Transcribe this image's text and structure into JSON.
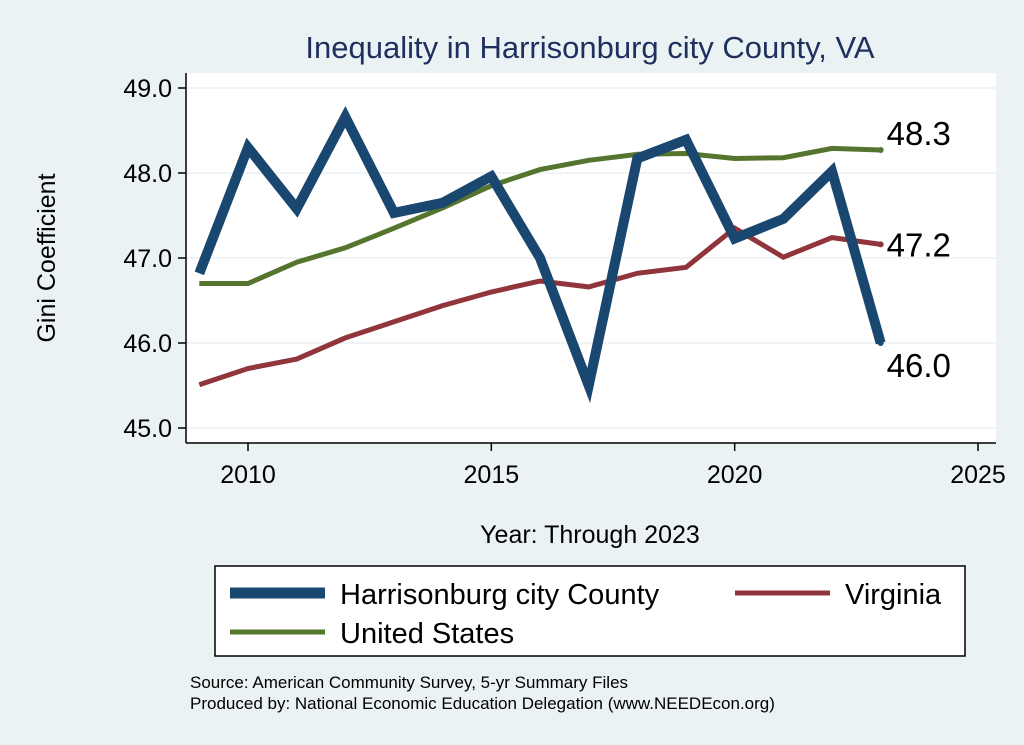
{
  "chart_data": {
    "type": "line",
    "title": "Inequality in Harrisonburg city County, VA",
    "xlabel": "Year: Through 2023",
    "ylabel": "Gini Coefficient",
    "xlim": [
      2009,
      2025
    ],
    "ylim": [
      45.0,
      49.0
    ],
    "x_ticks": [
      "2010",
      "2015",
      "2020",
      "2025"
    ],
    "y_ticks": [
      "45.0",
      "46.0",
      "47.0",
      "48.0",
      "49.0"
    ],
    "grid": "horizontal",
    "legend_position": "bottom",
    "series": [
      {
        "name": "Harrisonburg city County",
        "color": "#1a476f",
        "x": [
          2009,
          2010,
          2011,
          2012,
          2013,
          2014,
          2015,
          2016,
          2017,
          2018,
          2019,
          2020,
          2021,
          2022,
          2023
        ],
        "values": [
          46.82,
          48.3,
          47.58,
          48.66,
          47.53,
          47.65,
          47.96,
          47.0,
          45.5,
          48.17,
          48.39,
          47.23,
          47.46,
          48.02,
          46.0
        ],
        "end_label": "46.0"
      },
      {
        "name": "Virginia",
        "color": "#90353b",
        "x": [
          2009,
          2010,
          2011,
          2012,
          2013,
          2014,
          2015,
          2016,
          2017,
          2018,
          2019,
          2020,
          2021,
          2022,
          2023
        ],
        "values": [
          45.51,
          45.7,
          45.81,
          46.06,
          46.25,
          46.44,
          46.6,
          46.73,
          46.66,
          46.82,
          46.89,
          47.35,
          47.01,
          47.24,
          47.16
        ],
        "end_label": "47.2"
      },
      {
        "name": "United States",
        "color": "#55752f",
        "x": [
          2009,
          2010,
          2011,
          2012,
          2013,
          2014,
          2015,
          2016,
          2017,
          2018,
          2019,
          2020,
          2021,
          2022,
          2023
        ],
        "values": [
          46.7,
          46.7,
          46.95,
          47.12,
          47.35,
          47.59,
          47.85,
          48.04,
          48.15,
          48.22,
          48.23,
          48.17,
          48.18,
          48.29,
          48.27
        ],
        "end_label": "48.3"
      }
    ],
    "legend": [
      {
        "series": "Harrisonburg city County",
        "label": "Harrisonburg city County"
      },
      {
        "series": "Virginia",
        "label": "Virginia"
      },
      {
        "series": "United States",
        "label": "United States"
      }
    ]
  },
  "notes": {
    "source": "Source: American Community Survey, 5-yr Summary Files",
    "producer": "Produced by: National Economic Education Delegation (www.NEEDEcon.org)"
  }
}
